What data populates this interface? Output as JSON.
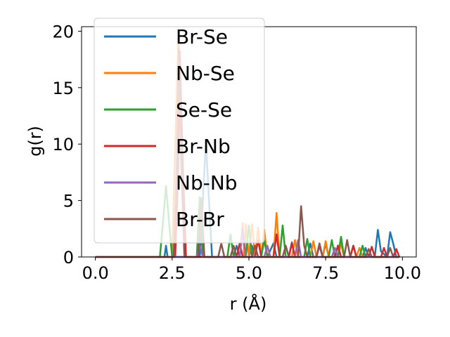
{
  "chart_data": {
    "type": "line",
    "xlabel": "r (Å)",
    "ylabel": "g(r)",
    "xlim": [
      -0.45,
      10.45
    ],
    "ylim": [
      0,
      20.4
    ],
    "xticks": [
      0.0,
      2.5,
      5.0,
      7.5,
      10.0
    ],
    "xtick_labels": [
      "0.0",
      "2.5",
      "5.0",
      "7.5",
      "10.0"
    ],
    "yticks": [
      0,
      5,
      10,
      15,
      20
    ],
    "ytick_labels": [
      "0",
      "5",
      "10",
      "15",
      "20"
    ],
    "legend_position": "upper-left",
    "series": [
      {
        "name": "Br-Se",
        "color": "#1f77b4",
        "points": [
          [
            0,
            0
          ],
          [
            2.0,
            0
          ],
          [
            2.25,
            0
          ],
          [
            2.3,
            1.0
          ],
          [
            2.35,
            0
          ],
          [
            3.4,
            0
          ],
          [
            3.5,
            5.0
          ],
          [
            3.6,
            10.3
          ],
          [
            3.7,
            5.0
          ],
          [
            3.8,
            0
          ],
          [
            4.5,
            0
          ],
          [
            4.6,
            1.0
          ],
          [
            4.7,
            0
          ],
          [
            5.0,
            0
          ],
          [
            5.1,
            1.0
          ],
          [
            5.2,
            0
          ],
          [
            5.6,
            0
          ],
          [
            5.8,
            1.2
          ],
          [
            5.9,
            0
          ],
          [
            6.3,
            0
          ],
          [
            6.4,
            1.3
          ],
          [
            6.5,
            0
          ],
          [
            6.9,
            0
          ],
          [
            7.0,
            1.2
          ],
          [
            7.1,
            0
          ],
          [
            7.4,
            0
          ],
          [
            7.5,
            1.2
          ],
          [
            7.6,
            0
          ],
          [
            7.8,
            0
          ],
          [
            7.9,
            1.0
          ],
          [
            8.0,
            0
          ],
          [
            8.3,
            0
          ],
          [
            8.4,
            1.0
          ],
          [
            8.5,
            0
          ],
          [
            8.7,
            0
          ],
          [
            8.8,
            0.8
          ],
          [
            8.9,
            0
          ],
          [
            9.1,
            0
          ],
          [
            9.2,
            2.4
          ],
          [
            9.3,
            0.5
          ],
          [
            9.5,
            0
          ],
          [
            9.6,
            2.2
          ],
          [
            9.7,
            1.2
          ],
          [
            9.8,
            0
          ],
          [
            9.9,
            0
          ]
        ]
      },
      {
        "name": "Nb-Se",
        "color": "#ff7f0e",
        "points": [
          [
            0,
            0
          ],
          [
            2.5,
            0
          ],
          [
            2.6,
            10.0
          ],
          [
            2.7,
            19.4
          ],
          [
            2.8,
            10.0
          ],
          [
            2.9,
            0
          ],
          [
            4.7,
            0
          ],
          [
            4.8,
            3.0
          ],
          [
            4.85,
            0
          ],
          [
            4.9,
            2.9
          ],
          [
            5.0,
            0
          ],
          [
            5.1,
            2.9
          ],
          [
            5.2,
            0
          ],
          [
            5.3,
            2.6
          ],
          [
            5.4,
            0
          ],
          [
            5.5,
            2.4
          ],
          [
            5.6,
            0
          ],
          [
            5.8,
            0
          ],
          [
            5.9,
            3.9
          ],
          [
            6.0,
            0
          ],
          [
            6.4,
            0
          ],
          [
            6.5,
            1.5
          ],
          [
            6.6,
            0
          ],
          [
            7.0,
            0
          ],
          [
            7.1,
            1.4
          ],
          [
            7.2,
            0
          ],
          [
            7.4,
            0
          ],
          [
            7.5,
            1.4
          ],
          [
            7.6,
            0
          ],
          [
            7.9,
            0
          ],
          [
            8.0,
            1.2
          ],
          [
            8.1,
            0
          ],
          [
            8.5,
            0
          ],
          [
            8.6,
            0.8
          ],
          [
            8.7,
            0
          ],
          [
            9.9,
            0
          ]
        ]
      },
      {
        "name": "Se-Se",
        "color": "#2ca02c",
        "points": [
          [
            0,
            0
          ],
          [
            2.1,
            0
          ],
          [
            2.2,
            3.0
          ],
          [
            2.3,
            6.3
          ],
          [
            2.4,
            3.0
          ],
          [
            2.5,
            0
          ],
          [
            3.3,
            0
          ],
          [
            3.4,
            5.3
          ],
          [
            3.5,
            0
          ],
          [
            4.3,
            0
          ],
          [
            4.4,
            2.0
          ],
          [
            4.5,
            0
          ],
          [
            4.9,
            0
          ],
          [
            5.0,
            2.8
          ],
          [
            5.1,
            0
          ],
          [
            5.4,
            0
          ],
          [
            5.5,
            1.5
          ],
          [
            5.6,
            0
          ],
          [
            6.0,
            0
          ],
          [
            6.1,
            2.8
          ],
          [
            6.2,
            0
          ],
          [
            6.8,
            0
          ],
          [
            6.9,
            1.6
          ],
          [
            7.0,
            0
          ],
          [
            7.6,
            0
          ],
          [
            7.7,
            1.5
          ],
          [
            7.8,
            0
          ],
          [
            7.9,
            0
          ],
          [
            8.0,
            1.8
          ],
          [
            8.1,
            0
          ],
          [
            8.6,
            0
          ],
          [
            8.7,
            1.0
          ],
          [
            8.8,
            0
          ],
          [
            9.9,
            0
          ]
        ]
      },
      {
        "name": "Br-Nb",
        "color": "#d62728",
        "points": [
          [
            0,
            0
          ],
          [
            2.6,
            0
          ],
          [
            2.7,
            8.0
          ],
          [
            2.75,
            18.2
          ],
          [
            2.85,
            8.0
          ],
          [
            2.95,
            0
          ],
          [
            4.6,
            0
          ],
          [
            4.7,
            1.2
          ],
          [
            4.8,
            0
          ],
          [
            5.2,
            0
          ],
          [
            5.3,
            1.5
          ],
          [
            5.4,
            0
          ],
          [
            5.8,
            0
          ],
          [
            5.9,
            2.0
          ],
          [
            6.0,
            0
          ],
          [
            6.3,
            0
          ],
          [
            6.4,
            1.2
          ],
          [
            6.5,
            0
          ],
          [
            7.2,
            0
          ],
          [
            7.3,
            1.0
          ],
          [
            7.4,
            0
          ],
          [
            7.8,
            0
          ],
          [
            7.9,
            1.0
          ],
          [
            8.0,
            0
          ],
          [
            8.3,
            0
          ],
          [
            8.4,
            1.0
          ],
          [
            8.5,
            0
          ],
          [
            8.9,
            0
          ],
          [
            9.0,
            0.9
          ],
          [
            9.1,
            0
          ],
          [
            9.3,
            0
          ],
          [
            9.4,
            0.8
          ],
          [
            9.5,
            0
          ],
          [
            9.7,
            0
          ],
          [
            9.8,
            0.7
          ],
          [
            9.9,
            0
          ]
        ]
      },
      {
        "name": "Nb-Nb",
        "color": "#9467bd",
        "points": [
          [
            0,
            0
          ],
          [
            3.3,
            0
          ],
          [
            3.4,
            1.0
          ],
          [
            3.5,
            0
          ],
          [
            4.7,
            0
          ],
          [
            4.8,
            2.5
          ],
          [
            4.9,
            0
          ],
          [
            5.5,
            0
          ],
          [
            5.6,
            1.0
          ],
          [
            5.7,
            0
          ],
          [
            6.5,
            0
          ],
          [
            6.6,
            1.5
          ],
          [
            6.7,
            0
          ],
          [
            7.7,
            0
          ],
          [
            7.8,
            0.8
          ],
          [
            7.9,
            0
          ],
          [
            9.9,
            0
          ]
        ]
      },
      {
        "name": "Br-Br",
        "color": "#8c564b",
        "points": [
          [
            0,
            0
          ],
          [
            2.55,
            0
          ],
          [
            2.65,
            8.0
          ],
          [
            2.72,
            18.5
          ],
          [
            2.8,
            8.0
          ],
          [
            2.9,
            0
          ],
          [
            3.35,
            0
          ],
          [
            3.45,
            5.2
          ],
          [
            3.55,
            0
          ],
          [
            4.0,
            0
          ],
          [
            4.1,
            1.2
          ],
          [
            4.2,
            0
          ],
          [
            4.4,
            0
          ],
          [
            4.5,
            1.0
          ],
          [
            4.6,
            0
          ],
          [
            5.1,
            0
          ],
          [
            5.2,
            1.0
          ],
          [
            5.3,
            0
          ],
          [
            6.1,
            0
          ],
          [
            6.2,
            1.0
          ],
          [
            6.3,
            0
          ],
          [
            6.6,
            0
          ],
          [
            6.7,
            4.5
          ],
          [
            6.8,
            1.0
          ],
          [
            6.9,
            0
          ],
          [
            7.2,
            0
          ],
          [
            7.3,
            1.2
          ],
          [
            7.4,
            0
          ],
          [
            8.1,
            0
          ],
          [
            8.2,
            1.5
          ],
          [
            8.3,
            0
          ],
          [
            8.8,
            0
          ],
          [
            8.9,
            0.7
          ],
          [
            9.0,
            0
          ],
          [
            9.5,
            0
          ],
          [
            9.6,
            0.8
          ],
          [
            9.7,
            0
          ],
          [
            9.9,
            0
          ]
        ]
      }
    ]
  }
}
